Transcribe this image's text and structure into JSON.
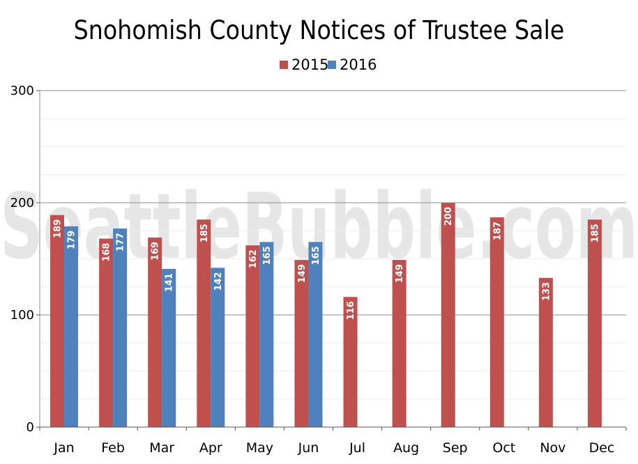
{
  "chart_data": {
    "type": "bar",
    "title": "Snohomish County Notices of Trustee Sale",
    "watermark": "SeattleBubble.com",
    "categories": [
      "Jan",
      "Feb",
      "Mar",
      "Apr",
      "May",
      "Jun",
      "Jul",
      "Aug",
      "Sep",
      "Oct",
      "Nov",
      "Dec"
    ],
    "series": [
      {
        "name": "2015",
        "color": "#c0504d",
        "values": [
          189,
          168,
          169,
          185,
          162,
          149,
          116,
          149,
          200,
          187,
          133,
          185
        ]
      },
      {
        "name": "2016",
        "color": "#4f81bd",
        "values": [
          179,
          177,
          141,
          142,
          165,
          165,
          null,
          null,
          null,
          null,
          null,
          null
        ]
      }
    ],
    "ylim": [
      0,
      300
    ],
    "yticks": [
      0,
      100,
      200,
      300
    ],
    "grid": true,
    "legend": "top-center",
    "data_labels": true
  }
}
